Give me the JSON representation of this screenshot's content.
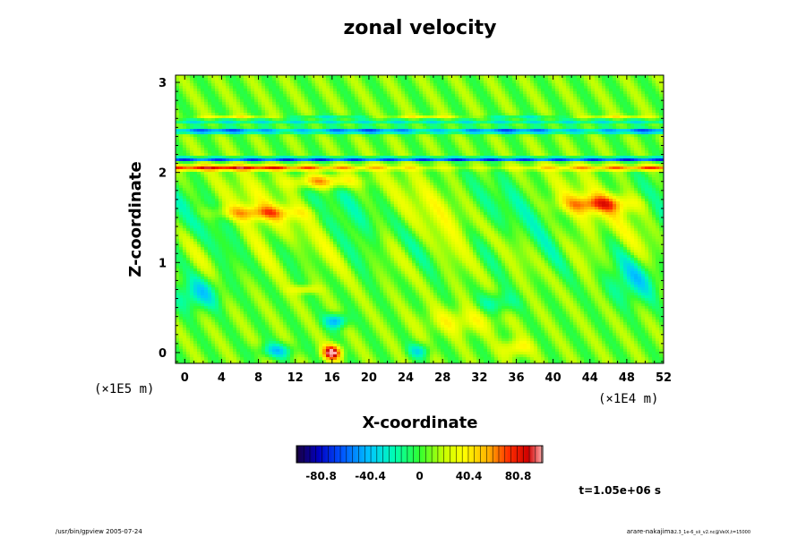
{
  "chart_data": {
    "type": "heatmap",
    "title": "zonal velocity",
    "xlabel": "X-coordinate",
    "ylabel": "Z-coordinate",
    "x_scale_note": "(×1E4 m)",
    "y_scale_note": "(×1E5 m)",
    "xlim": [
      -1,
      52
    ],
    "ylim": [
      -0.12,
      3.08
    ],
    "x_ticks": [
      "0",
      "4",
      "8",
      "12",
      "16",
      "20",
      "24",
      "28",
      "32",
      "36",
      "40",
      "44",
      "48",
      "52"
    ],
    "y_ticks": [
      "0",
      "1",
      "2",
      "3"
    ],
    "colorbar": {
      "min": -101,
      "max": 101,
      "ticks": [
        "-80.8",
        "-40.4",
        "0",
        "40.4",
        "80.8"
      ],
      "colors": [
        "#1a0040",
        "#0000c0",
        "#0050ff",
        "#00c8ff",
        "#00ffb0",
        "#30ff30",
        "#c8ff00",
        "#ffff00",
        "#ffb000",
        "#ff3000",
        "#d00000",
        "#ffb0b0"
      ]
    },
    "features": [
      {
        "desc": "blue band",
        "z": 2.15,
        "value": -90
      },
      {
        "desc": "blue band",
        "z": 2.46,
        "value": -70
      },
      {
        "desc": "red band",
        "z": 2.05,
        "value": 85
      },
      {
        "desc": "red blob",
        "x": 16,
        "z": 0.03,
        "value": 95
      },
      {
        "desc": "blue blob",
        "x": 16.5,
        "z": 0.35,
        "value": -60
      },
      {
        "desc": "orange blob",
        "x": 15,
        "z": 1.9,
        "value": 70
      },
      {
        "desc": "orange blob",
        "x": 45,
        "z": 1.65,
        "value": 70
      }
    ]
  },
  "time_label": "t=1.05e+06 s",
  "footer_left": "/usr/bin/gpview 2005-07-24",
  "footer_right": "arare-nakajima",
  "footer_right_sub": "2.3_1e-6_sii_v2.nc@VelX,t=15000"
}
